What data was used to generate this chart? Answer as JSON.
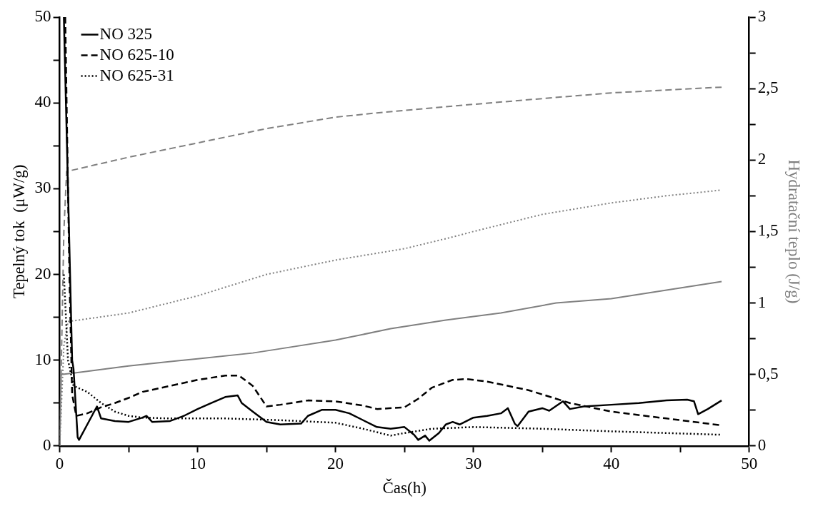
{
  "chart_data": {
    "type": "line",
    "xlabel": "Čas(h)",
    "ylabel": "Tepelný tok  (μW/g)",
    "y2label": "Hydratační teplo (J/g)",
    "xlim": [
      0,
      50
    ],
    "xticks": [
      0,
      {
        "value": 5,
        "label": null
      },
      10,
      {
        "value": 15,
        "label": null
      },
      20,
      {
        "value": 25,
        "label": null
      },
      30,
      {
        "value": 35,
        "label": null
      },
      40,
      {
        "value": 45,
        "label": null
      },
      50
    ],
    "ylim": [
      0,
      50
    ],
    "yticks": [
      0,
      {
        "value": 5,
        "label": null
      },
      10,
      {
        "value": 15,
        "label": null
      },
      20,
      {
        "value": 25,
        "label": null
      },
      30,
      {
        "value": 35,
        "label": null
      },
      40,
      {
        "value": 45,
        "label": null
      },
      50
    ],
    "y2lim": [
      0,
      3
    ],
    "y2ticks": [
      0,
      {
        "value": 0.25,
        "label": null
      },
      {
        "value": 0.5,
        "label": "0,5"
      },
      {
        "value": 0.75,
        "label": null
      },
      1,
      {
        "value": 1.25,
        "label": null
      },
      {
        "value": 1.5,
        "label": "1,5"
      },
      {
        "value": 1.75,
        "label": null
      },
      2,
      {
        "value": 2.25,
        "label": null
      },
      {
        "value": 2.5,
        "label": "2,5"
      },
      {
        "value": 2.75,
        "label": null
      },
      3
    ],
    "grid": false,
    "legend": "top left",
    "marker": "none",
    "series": [
      {
        "name": "NO 325",
        "color": "#000000",
        "line_style": "solid",
        "x": [
          0.3,
          0.6,
          0.9,
          1.0,
          1.3,
          1.4,
          2,
          2.7,
          3,
          4,
          5,
          6,
          6.3,
          6.7,
          8,
          9,
          10,
          11,
          12,
          12.9,
          13.2,
          14,
          15,
          16,
          17.5,
          18,
          19,
          20,
          21,
          22,
          23,
          24,
          25,
          25.7,
          26,
          26.5,
          26.8,
          27.5,
          28,
          28.5,
          29,
          30,
          31,
          32,
          32.5,
          33,
          33.2,
          34,
          35,
          35.5,
          36.5,
          37,
          38,
          40,
          42,
          44,
          45.5,
          46,
          46.3,
          47,
          48
        ],
        "values": [
          50,
          30,
          10,
          9,
          1,
          0.7,
          2.5,
          4.6,
          3.2,
          2.9,
          2.8,
          3.3,
          3.5,
          2.8,
          2.9,
          3.5,
          4.3,
          5.0,
          5.7,
          5.9,
          5,
          4,
          2.8,
          2.5,
          2.6,
          3.5,
          4.2,
          4.2,
          3.8,
          3,
          2.2,
          2,
          2.2,
          1.3,
          0.7,
          1.2,
          0.6,
          1.5,
          2.5,
          2.8,
          2.5,
          3.3,
          3.5,
          3.8,
          4.4,
          2.6,
          2.3,
          4,
          4.4,
          4.1,
          5.2,
          4.3,
          4.6,
          4.8,
          5.0,
          5.3,
          5.4,
          5.2,
          3.7,
          4.3,
          5.3
        ]
      },
      {
        "name": "NO 625-10",
        "color": "#000000",
        "line_style": "dashed",
        "x": [
          0.4,
          0.7,
          0.9,
          1.2,
          2,
          3,
          4,
          5,
          6,
          8,
          10,
          12,
          13,
          14,
          15,
          16,
          18,
          20,
          22,
          23,
          25,
          26,
          27,
          28.5,
          29.5,
          31,
          34,
          37,
          40,
          44,
          48
        ],
        "values": [
          50,
          20,
          6,
          3.5,
          3.8,
          4.5,
          5,
          5.6,
          6.3,
          7,
          7.7,
          8.2,
          8.2,
          7,
          4.6,
          4.8,
          5.3,
          5.2,
          4.7,
          4.3,
          4.5,
          5.5,
          6.8,
          7.7,
          7.8,
          7.5,
          6.5,
          5,
          4,
          3.2,
          2.4
        ]
      },
      {
        "name": "NO 625-31",
        "color": "#000000",
        "line_style": "dotted",
        "x": [
          0.3,
          0.6,
          1,
          2,
          3,
          4,
          5,
          6,
          8,
          12,
          16,
          20,
          22,
          24,
          25,
          27,
          30,
          35,
          40,
          44,
          48
        ],
        "values": [
          20,
          10,
          7,
          6.3,
          5,
          4,
          3.5,
          3.3,
          3.2,
          3.2,
          3,
          2.7,
          2,
          1.2,
          1.5,
          2,
          2.2,
          2,
          1.7,
          1.5,
          1.3
        ]
      },
      {
        "color": "#808080",
        "line_style": "solid",
        "axis": "y2",
        "x": [
          0,
          0.1,
          1,
          5,
          10,
          14,
          16,
          20,
          24,
          28,
          32,
          36,
          40,
          44,
          48
        ],
        "values": [
          0,
          0.5,
          0.51,
          0.56,
          0.61,
          0.65,
          0.68,
          0.74,
          0.82,
          0.88,
          0.93,
          1.0,
          1.03,
          1.09,
          1.15
        ]
      },
      {
        "color": "#808080",
        "line_style": "dashed",
        "axis": "y2",
        "x": [
          0,
          0.3,
          0.5,
          5,
          10,
          15,
          20,
          23,
          30,
          35,
          40,
          48
        ],
        "values": [
          0,
          1.5,
          1.92,
          2.02,
          2.12,
          2.22,
          2.3,
          2.33,
          2.39,
          2.43,
          2.47,
          2.51
        ]
      },
      {
        "color": "#808080",
        "line_style": "dotted",
        "axis": "y2",
        "x": [
          0,
          0.3,
          0.6,
          5,
          10,
          15,
          20,
          25,
          28,
          30,
          35,
          40,
          44,
          48
        ],
        "values": [
          0,
          0.7,
          0.87,
          0.93,
          1.05,
          1.2,
          1.3,
          1.38,
          1.45,
          1.5,
          1.62,
          1.7,
          1.75,
          1.79
        ]
      }
    ]
  }
}
